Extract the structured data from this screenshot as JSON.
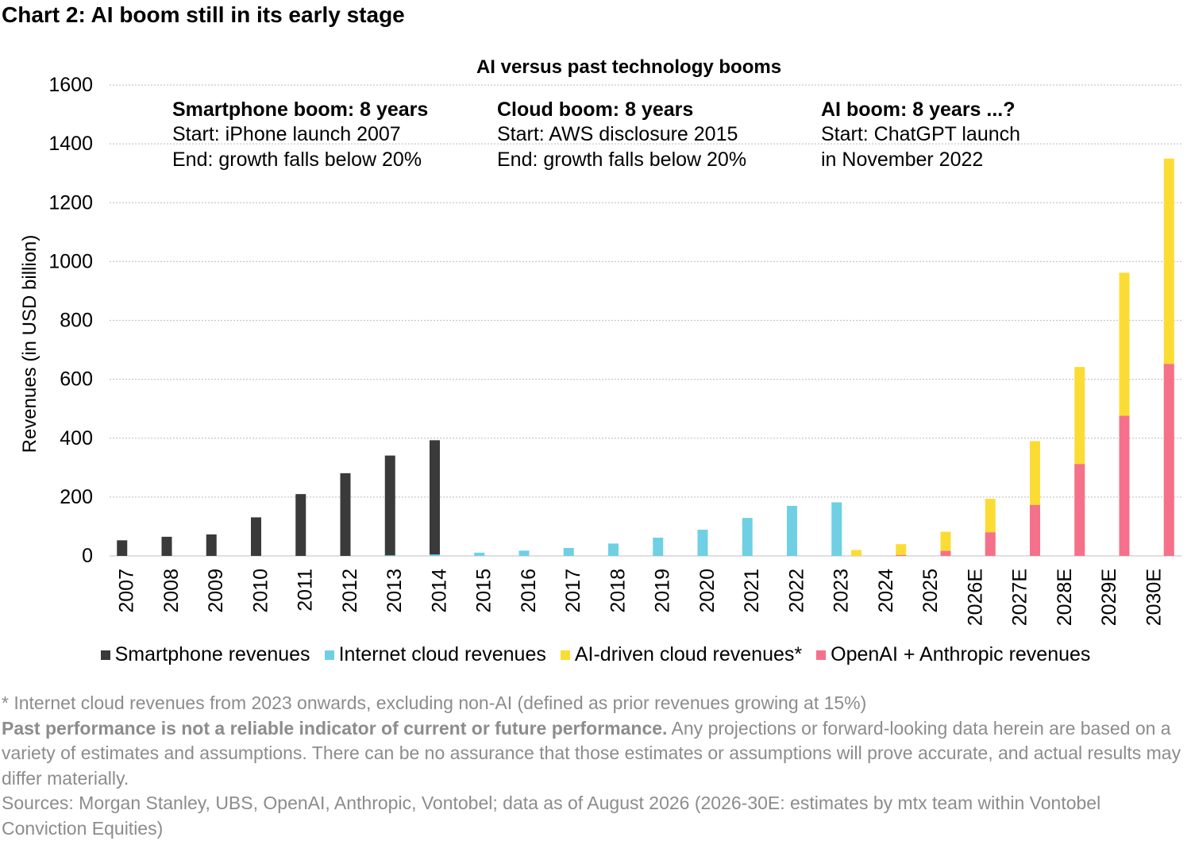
{
  "heading": "Chart 2: AI boom still in its early stage",
  "colors": {
    "smartphone": "#3a3a3a",
    "cloud": "#6fd0e4",
    "ai_cloud": "#fbdc34",
    "openai": "#f5718b",
    "gridline": "#c8c8c8",
    "footnote_text": "#8c8c8c"
  },
  "chart_data": {
    "type": "bar",
    "title": "AI versus past technology booms",
    "ylabel": "Revenues (in USD billion)",
    "xlabel": "",
    "ylim": [
      0,
      1600
    ],
    "yticks": [
      0,
      200,
      400,
      600,
      800,
      1000,
      1200,
      1400,
      1600
    ],
    "grid": true,
    "legend_position": "bottom",
    "categories": [
      "2007",
      "2008",
      "2009",
      "2010",
      "2011",
      "2012",
      "2013",
      "2014",
      "2015",
      "2016",
      "2017",
      "2018",
      "2019",
      "2020",
      "2021",
      "2022",
      "2023",
      "2024",
      "2025",
      "2026E",
      "2027E",
      "2028E",
      "2029E",
      "2030E"
    ],
    "series": [
      {
        "name": "Smartphone revenues",
        "color": "#3a3a3a",
        "values": [
          53,
          65,
          73,
          131,
          210,
          281,
          341,
          393,
          0,
          0,
          0,
          0,
          0,
          0,
          0,
          0,
          0,
          0,
          0,
          0,
          0,
          0,
          0,
          0
        ]
      },
      {
        "name": "Internet cloud revenues",
        "color": "#6fd0e4",
        "values": [
          0,
          0,
          0,
          0,
          0,
          0,
          2,
          5,
          11,
          18,
          27,
          42,
          62,
          89,
          129,
          170,
          182,
          0,
          0,
          0,
          0,
          0,
          0,
          0
        ]
      },
      {
        "name": "AI-driven cloud revenues*",
        "color": "#fbdc34",
        "values": [
          0,
          0,
          0,
          0,
          0,
          0,
          0,
          0,
          0,
          0,
          0,
          0,
          0,
          0,
          0,
          0,
          20,
          40,
          82,
          194,
          390,
          642,
          962,
          1350
        ]
      },
      {
        "name": "OpenAI + Anthropic revenues",
        "color": "#f5718b",
        "values": [
          0,
          0,
          0,
          0,
          0,
          0,
          0,
          0,
          0,
          0,
          0,
          0,
          0,
          0,
          0,
          0,
          0,
          3,
          17,
          80,
          173,
          312,
          476,
          652
        ]
      }
    ],
    "annotations": [
      {
        "title": "Smartphone boom: 8 years",
        "lines": [
          "Start: iPhone launch 2007",
          "End: growth falls below 20%"
        ]
      },
      {
        "title": "Cloud boom: 8 years",
        "lines": [
          "Start: AWS disclosure 2015",
          "End: growth falls below 20%"
        ]
      },
      {
        "title": "AI boom: 8 years ...?",
        "lines": [
          "Start: ChatGPT launch",
          "in November 2022"
        ]
      }
    ]
  },
  "footnotes": {
    "note": "* Internet cloud revenues from 2023 onwards, excluding non-AI (defined as prior revenues growing at 15%)",
    "disclaimer_bold": "Past performance is not a reliable indicator of current or future performance.",
    "disclaimer_rest": " Any projections or forward-looking data herein are based on a variety of estimates and assumptions. There can be no assurance that those estimates or assumptions will prove accurate, and actual results may differ materially.",
    "sources": "Sources: Morgan Stanley, UBS, OpenAI, Anthropic, Vontobel; data as of August 2026 (2026-30E: estimates by mtx team within Vontobel Conviction Equities)"
  }
}
